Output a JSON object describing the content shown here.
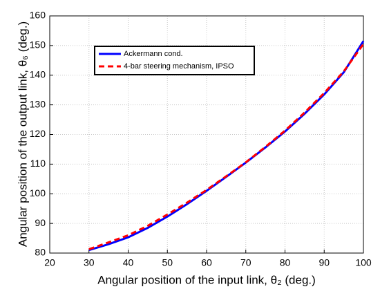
{
  "chart_data": {
    "type": "line",
    "x_label": "Angular position of the input link, θ₂ (deg.)",
    "y_label": "Angular position of the output link, θ₆ (deg.)",
    "x": [
      30,
      35,
      40,
      45,
      50,
      55,
      60,
      65,
      70,
      75,
      80,
      85,
      90,
      95,
      100
    ],
    "series": [
      {
        "name": "Ackermann cond.",
        "color": "#0000ff",
        "dash": false,
        "values": [
          81,
          83,
          85.3,
          88.5,
          92.3,
          96.5,
          101,
          105.7,
          110.5,
          115.6,
          121,
          127,
          133.5,
          141,
          151.5
        ]
      },
      {
        "name": "4-bar steering mechanism, IPSO",
        "color": "#ff0000",
        "dash": true,
        "values": [
          81.3,
          83.6,
          86,
          89.2,
          93,
          97,
          101.3,
          105.9,
          110.6,
          115.8,
          121.3,
          127.4,
          134,
          141.3,
          150.5
        ]
      }
    ],
    "xlim": [
      20,
      100
    ],
    "xticks": [
      20,
      30,
      40,
      50,
      60,
      70,
      80,
      90,
      100
    ],
    "ylim": [
      80,
      160
    ],
    "yticks": [
      80,
      90,
      100,
      110,
      120,
      130,
      140,
      150,
      160
    ],
    "grid": true,
    "legend": "upper left"
  }
}
